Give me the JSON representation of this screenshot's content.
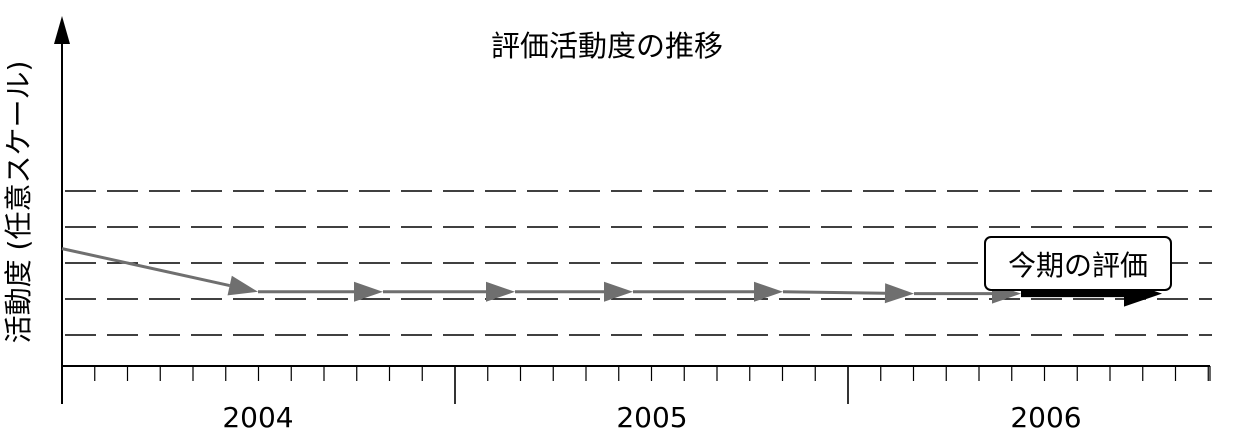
{
  "chart_data": {
    "type": "line",
    "title": "評価活動度の推移",
    "ylabel": "活動度 (任意スケール)",
    "xlabel": "",
    "x_tick_labels": [
      "2004",
      "2005",
      "2006"
    ],
    "grid": "horizontal dashed",
    "ylim": [
      0,
      10
    ],
    "series": [
      {
        "values": [
          2.4,
          1.2,
          1.2,
          1.2,
          1.2,
          1.2,
          1.15,
          1.15,
          1.15,
          1.15
        ]
      },
      {
        "values": [
          1.15,
          1.15
        ]
      }
    ],
    "gridline_values": [
      0.0,
      1.0,
      2.0,
      3.0,
      4.0
    ],
    "annotation": {
      "text": "今期の評価"
    },
    "colors": {
      "history": "#6f6f6f",
      "current": "#000000",
      "grid": "#000000"
    }
  }
}
